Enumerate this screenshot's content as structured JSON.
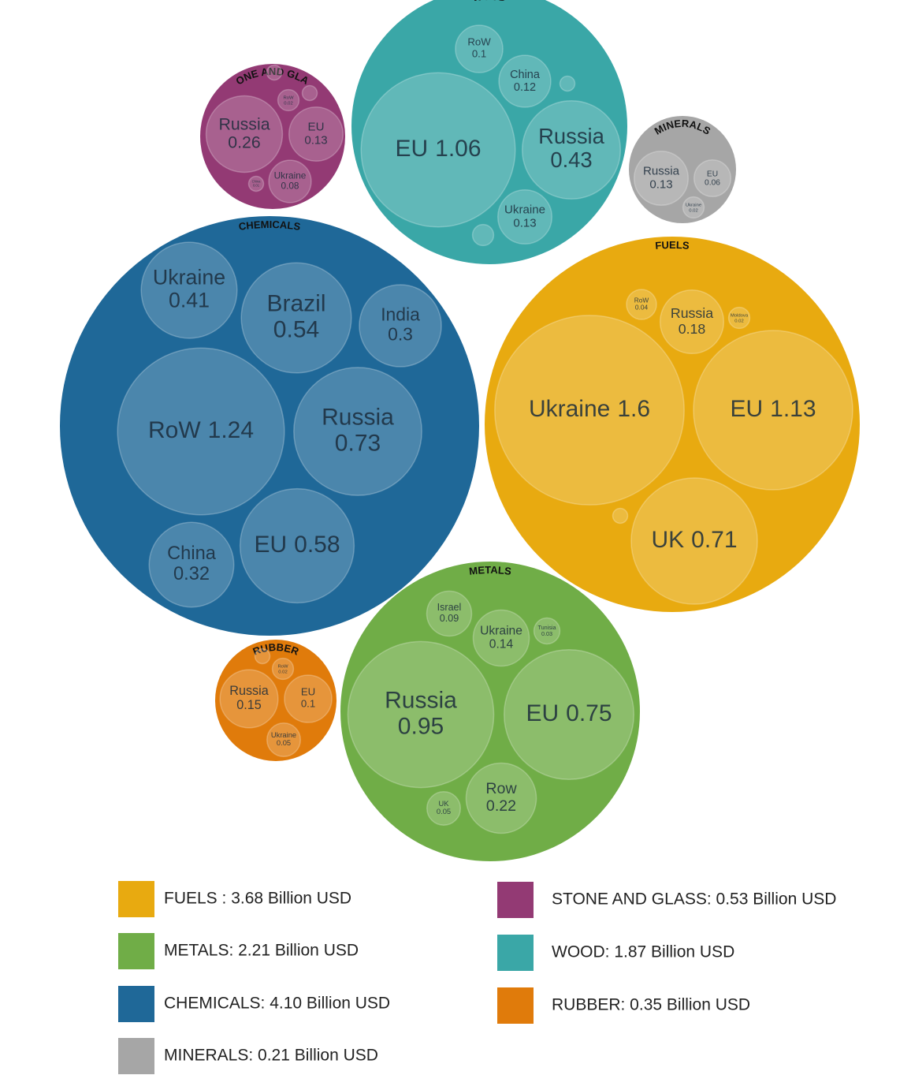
{
  "chart_data": {
    "type": "packed_bubble",
    "groups": [
      {
        "name": "FUELS",
        "color": "#e8aa10",
        "legend": "FUELS : 3.68 Billion USD",
        "children": [
          {
            "name": "Ukraine",
            "value": 1.6
          },
          {
            "name": "EU",
            "value": 1.13
          },
          {
            "name": "UK",
            "value": 0.71
          },
          {
            "name": "Russia",
            "value": 0.18
          },
          {
            "name": "RoW",
            "value": 0.04
          },
          {
            "name": "Moldova",
            "value": 0.02
          },
          {
            "name": null,
            "value": 0.01
          }
        ]
      },
      {
        "name": "METALS",
        "color": "#70ad47",
        "legend": "METALS: 2.21 Billion USD",
        "children": [
          {
            "name": "Russia",
            "value": 0.95
          },
          {
            "name": "EU",
            "value": 0.75
          },
          {
            "name": "Row",
            "value": 0.22
          },
          {
            "name": "Israel",
            "value": 0.09
          },
          {
            "name": "Ukraine",
            "value": 0.14
          },
          {
            "name": "Tunisia",
            "value": 0.03
          },
          {
            "name": "UK",
            "value": 0.05
          }
        ]
      },
      {
        "name": "CHEMICALS",
        "color": "#1f6898",
        "legend": "CHEMICALS: 4.10 Billion USD",
        "children": [
          {
            "name": "Ukraine",
            "value": 0.41
          },
          {
            "name": "Brazil",
            "value": 0.54
          },
          {
            "name": "India",
            "value": 0.3
          },
          {
            "name": "RoW",
            "value": 1.24
          },
          {
            "name": "Russia",
            "value": 0.73
          },
          {
            "name": "EU",
            "value": 0.58
          },
          {
            "name": "China",
            "value": 0.32
          }
        ]
      },
      {
        "name": "MINERALS",
        "color": "#a6a6a6",
        "legend": "MINERALS: 0.21 Billion USD",
        "children": [
          {
            "name": "Russia",
            "value": 0.13
          },
          {
            "name": "EU",
            "value": 0.06
          },
          {
            "name": "Ukraine",
            "value": 0.02
          }
        ]
      },
      {
        "name": "STONE AND GLASS",
        "color": "#933a74",
        "legend": "STONE AND GLASS: 0.53 Billion USD",
        "children": [
          {
            "name": "Russia",
            "value": 0.26
          },
          {
            "name": "EU",
            "value": 0.13
          },
          {
            "name": "Ukraine",
            "value": 0.08
          },
          {
            "name": "RoW",
            "value": 0.02
          },
          {
            "name": null,
            "value": 0.01
          },
          {
            "name": "China",
            "value": 0.01
          },
          {
            "name": null,
            "value": 0.01
          }
        ]
      },
      {
        "name": "WOOD",
        "color": "#3aa7a7",
        "legend": "WOOD: 1.87 Billion USD",
        "children": [
          {
            "name": "EU",
            "value": 1.06
          },
          {
            "name": "Russia",
            "value": 0.43
          },
          {
            "name": "RoW",
            "value": 0.1
          },
          {
            "name": "China",
            "value": 0.12
          },
          {
            "name": "Ukraine",
            "value": 0.13
          },
          {
            "name": null,
            "value": 0.01
          },
          {
            "name": null,
            "value": 0.02
          }
        ]
      },
      {
        "name": "RUBBER",
        "color": "#e07b0b",
        "legend": "RUBBER: 0.35 Billion USD",
        "children": [
          {
            "name": "Russia",
            "value": 0.15
          },
          {
            "name": "EU",
            "value": 0.1
          },
          {
            "name": "Ukraine",
            "value": 0.05
          },
          {
            "name": "RoW",
            "value": 0.02
          },
          {
            "name": null,
            "value": 0.01
          }
        ]
      }
    ]
  }
}
